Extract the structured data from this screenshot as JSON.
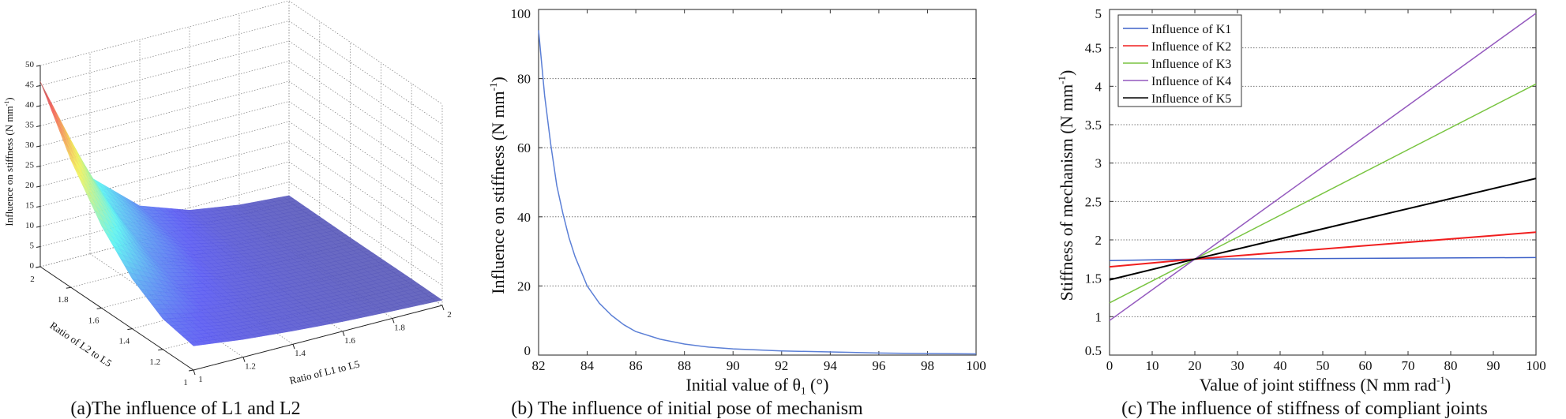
{
  "chart_data": [
    {
      "type": "surface",
      "caption": "(a)The influence of L1 and L2",
      "xlabel": "Ratio of L1 to L5",
      "ylabel": "Ratio of L2 to L5",
      "zlabel": {
        "main": "Influence on stiffness (N mm",
        "sup": "-1",
        "tail": ")"
      },
      "x": [
        1,
        1.2,
        1.4,
        1.6,
        1.8,
        2
      ],
      "y": [
        1,
        1.2,
        1.4,
        1.6,
        1.8,
        2
      ],
      "z_rows_by_y": [
        [
          6.0,
          4.4,
          3.3,
          2.4,
          1.8,
          1.3
        ],
        [
          7.6,
          5.0,
          3.5,
          2.5,
          1.8,
          1.4
        ],
        [
          12.4,
          6.8,
          4.2,
          2.8,
          1.9,
          1.4
        ],
        [
          20.4,
          9.7,
          5.2,
          3.2,
          2.1,
          1.4
        ],
        [
          31.6,
          13.9,
          6.8,
          3.7,
          2.3,
          1.5
        ],
        [
          46.0,
          19.1,
          8.7,
          4.4,
          2.5,
          1.6
        ]
      ],
      "xlim": [
        1,
        2
      ],
      "ylim": [
        1,
        2
      ],
      "zlim": [
        0,
        50
      ],
      "xticks": [
        "1",
        "1.2",
        "1.4",
        "1.6",
        "1.8",
        "2"
      ],
      "yticks": [
        "1",
        "1.2",
        "1.4",
        "1.6",
        "1.8",
        "2"
      ],
      "zticks": [
        "0",
        "5",
        "10",
        "15",
        "20",
        "25",
        "30",
        "35",
        "40",
        "45",
        "50"
      ],
      "colormap": "jet",
      "grid": true
    },
    {
      "type": "line",
      "caption": "(b) The influence of initial pose of mechanism",
      "xlabel": {
        "main": "Initial value of θ",
        "sub": "1",
        "tail": " (°)"
      },
      "ylabel": {
        "main": "Influence on stiffness (N mm",
        "sup": "-1",
        "tail": ")"
      },
      "xlim": [
        82,
        100
      ],
      "ylim": [
        0,
        100
      ],
      "xticks": [
        "82",
        "84",
        "86",
        "88",
        "90",
        "92",
        "94",
        "96",
        "98",
        "100"
      ],
      "yticks": [
        "0",
        "20",
        "40",
        "60",
        "80",
        "100"
      ],
      "grid": "horizontal dotted",
      "series": [
        {
          "name": "influence",
          "color": "#5b7fd6",
          "x": [
            82,
            82.25,
            82.5,
            82.75,
            83,
            83.25,
            83.5,
            84,
            84.5,
            85,
            85.5,
            86,
            87,
            88,
            89,
            90,
            92,
            94,
            96,
            98,
            100
          ],
          "y": [
            94,
            75,
            61,
            49,
            41,
            34,
            28.5,
            20,
            15,
            11.5,
            8.8,
            6.8,
            4.6,
            3.2,
            2.3,
            1.8,
            1.2,
            0.9,
            0.6,
            0.45,
            0.35
          ]
        }
      ]
    },
    {
      "type": "line",
      "caption": "(c) The influence of stiffness of compliant joints",
      "xlabel": {
        "main": "Value of joint stiffness (N mm rad",
        "sup": "-1",
        "tail": ")"
      },
      "ylabel": {
        "main": "Stiffness of mechanism (N mm",
        "sup": "-1",
        "tail": ")"
      },
      "xlim": [
        0,
        100
      ],
      "ylim": [
        0.5,
        5
      ],
      "xticks": [
        "0",
        "10",
        "20",
        "30",
        "40",
        "50",
        "60",
        "70",
        "80",
        "90",
        "100"
      ],
      "yticks": [
        "0.5",
        "1",
        "1.5",
        "2",
        "2.5",
        "3",
        "3.5",
        "4",
        "4.5",
        "5"
      ],
      "grid": "horizontal dotted",
      "legend_position": "top-left",
      "x": [
        0,
        20,
        100
      ],
      "series": [
        {
          "name": "Influence of K1",
          "color": "#3f62c8",
          "values": [
            1.73,
            1.75,
            1.77
          ]
        },
        {
          "name": "Influence of K2",
          "color": "#f01e1e",
          "values": [
            1.65,
            1.75,
            2.1
          ]
        },
        {
          "name": "Influence of K3",
          "color": "#78c440",
          "values": [
            1.18,
            1.75,
            4.03
          ]
        },
        {
          "name": "Influence of K4",
          "color": "#9459be",
          "values": [
            0.95,
            1.75,
            4.95
          ]
        },
        {
          "name": "Influence of K5",
          "color": "#000000",
          "values": [
            1.48,
            1.75,
            2.8
          ]
        }
      ]
    }
  ]
}
